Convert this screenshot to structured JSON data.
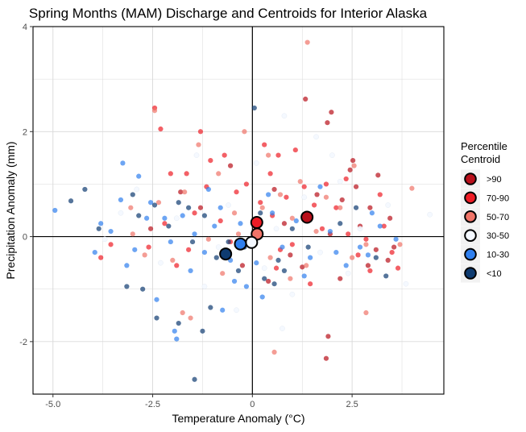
{
  "chart_data": {
    "type": "scatter",
    "title": "Spring Months (MAM) Discharge and Centroids for Interior Alaska",
    "xlabel": "Temperature Anomaly (°C)",
    "ylabel": "Precipitation Anomaly (mm)",
    "xlim": [
      -5.5,
      4.8
    ],
    "ylim": [
      -3.0,
      4.0
    ],
    "x_ticks": [
      -5.0,
      -2.5,
      0,
      2.5
    ],
    "x_tick_labels": [
      "-5.0",
      "-2.5",
      "0",
      "2.5"
    ],
    "y_ticks": [
      -2,
      0,
      2,
      4
    ],
    "y_tick_labels": [
      "-2",
      "0",
      "2",
      "4"
    ],
    "grid": true,
    "legend": {
      "title_line1": "Percentile",
      "title_line2": "Centroid",
      "placement": "right"
    },
    "categories": [
      {
        "name": ">90",
        "color": "#b80f1a"
      },
      {
        "name": "70-90",
        "color": "#ee1c25"
      },
      {
        "name": "50-70",
        "color": "#f07468"
      },
      {
        "name": "30-50",
        "color": "#f4f8ff"
      },
      {
        "name": "10-30",
        "color": "#2f7fee"
      },
      {
        "name": "<10",
        "color": "#0e3b70"
      }
    ],
    "centroids": [
      {
        "category": ">90",
        "x": 1.37,
        "y": 0.37
      },
      {
        "category": "70-90",
        "x": 0.11,
        "y": 0.27
      },
      {
        "category": "50-70",
        "x": 0.12,
        "y": 0.05
      },
      {
        "category": "30-50",
        "x": -0.02,
        "y": -0.11
      },
      {
        "category": "10-30",
        "x": -0.3,
        "y": -0.14
      },
      {
        "category": "<10",
        "x": -0.67,
        "y": -0.33
      }
    ],
    "points": [
      {
        "category": ">90",
        "x": 1.33,
        "y": 2.62
      },
      {
        "category": ">90",
        "x": 1.98,
        "y": 2.37
      },
      {
        "category": ">90",
        "x": 1.88,
        "y": 2.17
      },
      {
        "category": ">90",
        "x": 2.52,
        "y": 1.45
      },
      {
        "category": ">90",
        "x": 2.45,
        "y": 1.27
      },
      {
        "category": ">90",
        "x": 3.15,
        "y": 1.17
      },
      {
        "category": ">90",
        "x": 1.62,
        "y": 0.8
      },
      {
        "category": ">90",
        "x": 2.25,
        "y": 0.7
      },
      {
        "category": ">90",
        "x": 2.95,
        "y": 0.55
      },
      {
        "category": ">90",
        "x": 3.45,
        "y": 0.35
      },
      {
        "category": ">90",
        "x": 2.7,
        "y": 0.2
      },
      {
        "category": ">90",
        "x": 1.95,
        "y": 0.05
      },
      {
        "category": ">90",
        "x": 3.55,
        "y": -0.2
      },
      {
        "category": ">90",
        "x": 3.4,
        "y": -0.45
      },
      {
        "category": ">90",
        "x": 2.9,
        "y": -0.55
      },
      {
        "category": ">90",
        "x": 1.25,
        "y": -0.58
      },
      {
        "category": ">90",
        "x": 0.95,
        "y": -0.35
      },
      {
        "category": ">90",
        "x": 0.8,
        "y": 0.25
      },
      {
        "category": ">90",
        "x": 0.55,
        "y": 0.9
      },
      {
        "category": ">90",
        "x": -0.55,
        "y": 1.35
      },
      {
        "category": ">90",
        "x": -1.8,
        "y": 0.85
      },
      {
        "category": ">90",
        "x": -2.55,
        "y": 0.15
      },
      {
        "category": ">90",
        "x": -0.25,
        "y": -0.55
      },
      {
        "category": ">90",
        "x": 2.2,
        "y": -0.8
      },
      {
        "category": ">90",
        "x": 1.9,
        "y": -1.9
      },
      {
        "category": ">90",
        "x": 1.85,
        "y": -2.32
      },
      {
        "category": ">90",
        "x": 3.1,
        "y": -0.25
      },
      {
        "category": ">90",
        "x": 0.4,
        "y": -0.85
      },
      {
        "category": ">90",
        "x": 2.6,
        "y": 0.95
      },
      {
        "category": ">90",
        "x": -1.3,
        "y": 0.55
      },
      {
        "category": "70-90",
        "x": -2.45,
        "y": 2.45
      },
      {
        "category": "70-90",
        "x": -2.3,
        "y": 2.05
      },
      {
        "category": "70-90",
        "x": -1.3,
        "y": 2.0
      },
      {
        "category": "70-90",
        "x": 0.3,
        "y": 1.75
      },
      {
        "category": "70-90",
        "x": 1.08,
        "y": 1.65
      },
      {
        "category": "70-90",
        "x": 0.65,
        "y": 1.55
      },
      {
        "category": "70-90",
        "x": -0.7,
        "y": 1.55
      },
      {
        "category": "70-90",
        "x": -1.05,
        "y": 1.45
      },
      {
        "category": "70-90",
        "x": -1.65,
        "y": 1.2
      },
      {
        "category": "70-90",
        "x": -2.05,
        "y": 1.2
      },
      {
        "category": "70-90",
        "x": 0.45,
        "y": 1.2
      },
      {
        "category": "70-90",
        "x": 1.85,
        "y": 1.0
      },
      {
        "category": "70-90",
        "x": 2.35,
        "y": 1.1
      },
      {
        "category": "70-90",
        "x": -1.15,
        "y": 0.95
      },
      {
        "category": "70-90",
        "x": -0.4,
        "y": 0.85
      },
      {
        "category": "70-90",
        "x": 0.85,
        "y": 0.75
      },
      {
        "category": "70-90",
        "x": 1.55,
        "y": 0.6
      },
      {
        "category": "70-90",
        "x": 2.1,
        "y": 0.55
      },
      {
        "category": "70-90",
        "x": 3.2,
        "y": 0.8
      },
      {
        "category": "70-90",
        "x": -1.45,
        "y": 0.45
      },
      {
        "category": "70-90",
        "x": -0.8,
        "y": 0.3
      },
      {
        "category": "70-90",
        "x": -2.2,
        "y": 0.25
      },
      {
        "category": "70-90",
        "x": 0.5,
        "y": 0.4
      },
      {
        "category": "70-90",
        "x": 1.75,
        "y": 0.15
      },
      {
        "category": "70-90",
        "x": 2.4,
        "y": 0.05
      },
      {
        "category": "70-90",
        "x": 3.5,
        "y": -0.3
      },
      {
        "category": "70-90",
        "x": 2.65,
        "y": -0.35
      },
      {
        "category": "70-90",
        "x": 0.7,
        "y": -0.25
      },
      {
        "category": "70-90",
        "x": -0.55,
        "y": -0.1
      },
      {
        "category": "70-90",
        "x": -3.8,
        "y": -0.4
      },
      {
        "category": "70-90",
        "x": -1.9,
        "y": -0.55
      },
      {
        "category": "70-90",
        "x": 1.45,
        "y": -0.9
      },
      {
        "category": "70-90",
        "x": 3.65,
        "y": -0.6
      },
      {
        "category": "70-90",
        "x": 3.3,
        "y": 0.2
      },
      {
        "category": "70-90",
        "x": -0.15,
        "y": 1.0
      },
      {
        "category": "70-90",
        "x": 0.2,
        "y": 0.65
      },
      {
        "category": "70-90",
        "x": -2.6,
        "y": -0.2
      },
      {
        "category": "70-90",
        "x": 1.0,
        "y": -0.15
      },
      {
        "category": "70-90",
        "x": 2.85,
        "y": -0.05
      },
      {
        "category": "70-90",
        "x": 0.05,
        "y": 0.2
      },
      {
        "category": "70-90",
        "x": -3.55,
        "y": -0.15
      },
      {
        "category": "70-90",
        "x": 1.3,
        "y": 0.95
      },
      {
        "category": "70-90",
        "x": -1.6,
        "y": -0.25
      },
      {
        "category": "70-90",
        "x": 2.95,
        "y": -0.65
      },
      {
        "category": "70-90",
        "x": 0.6,
        "y": -0.6
      },
      {
        "category": "50-70",
        "x": 1.38,
        "y": 3.7
      },
      {
        "category": "50-70",
        "x": -2.45,
        "y": 2.4
      },
      {
        "category": "50-70",
        "x": -0.2,
        "y": 2.0
      },
      {
        "category": "50-70",
        "x": -1.35,
        "y": 1.75
      },
      {
        "category": "50-70",
        "x": 0.4,
        "y": 1.55
      },
      {
        "category": "50-70",
        "x": 2.55,
        "y": 1.35
      },
      {
        "category": "50-70",
        "x": -0.85,
        "y": 1.2
      },
      {
        "category": "50-70",
        "x": 1.2,
        "y": 1.05
      },
      {
        "category": "50-70",
        "x": -1.7,
        "y": 0.85
      },
      {
        "category": "50-70",
        "x": 0.7,
        "y": 0.8
      },
      {
        "category": "50-70",
        "x": 4.0,
        "y": 0.92
      },
      {
        "category": "50-70",
        "x": -2.35,
        "y": 0.65
      },
      {
        "category": "50-70",
        "x": 2.2,
        "y": 0.55
      },
      {
        "category": "50-70",
        "x": -0.45,
        "y": 0.45
      },
      {
        "category": "50-70",
        "x": 1.0,
        "y": 0.35
      },
      {
        "category": "50-70",
        "x": -3.0,
        "y": 0.05
      },
      {
        "category": "50-70",
        "x": 1.6,
        "y": 0.1
      },
      {
        "category": "50-70",
        "x": -1.1,
        "y": -0.05
      },
      {
        "category": "50-70",
        "x": 2.85,
        "y": -0.15
      },
      {
        "category": "50-70",
        "x": 0.45,
        "y": -0.4
      },
      {
        "category": "50-70",
        "x": -2.0,
        "y": -0.45
      },
      {
        "category": "50-70",
        "x": 1.35,
        "y": -0.55
      },
      {
        "category": "50-70",
        "x": -0.75,
        "y": -0.7
      },
      {
        "category": "50-70",
        "x": 0.95,
        "y": -0.8
      },
      {
        "category": "50-70",
        "x": -1.75,
        "y": -1.45
      },
      {
        "category": "50-70",
        "x": -1.55,
        "y": -1.55
      },
      {
        "category": "50-70",
        "x": 0.55,
        "y": -2.2
      },
      {
        "category": "50-70",
        "x": 2.85,
        "y": -1.45
      },
      {
        "category": "50-70",
        "x": 3.7,
        "y": -0.15
      },
      {
        "category": "50-70",
        "x": -3.05,
        "y": 0.55
      },
      {
        "category": "50-70",
        "x": 0.25,
        "y": 0.55
      },
      {
        "category": "50-70",
        "x": 1.85,
        "y": 0.75
      },
      {
        "category": "50-70",
        "x": -0.35,
        "y": 0.05
      },
      {
        "category": "50-70",
        "x": 2.5,
        "y": -0.4
      },
      {
        "category": "50-70",
        "x": -2.7,
        "y": -0.35
      },
      {
        "category": "30-50",
        "x": 0.8,
        "y": 2.3
      },
      {
        "category": "30-50",
        "x": 1.6,
        "y": 1.9
      },
      {
        "category": "30-50",
        "x": -1.4,
        "y": 1.55
      },
      {
        "category": "30-50",
        "x": 0.1,
        "y": 1.4
      },
      {
        "category": "30-50",
        "x": 2.2,
        "y": 1.05
      },
      {
        "category": "30-50",
        "x": -2.9,
        "y": 0.9
      },
      {
        "category": "30-50",
        "x": 1.3,
        "y": 0.75
      },
      {
        "category": "30-50",
        "x": -0.6,
        "y": 0.6
      },
      {
        "category": "30-50",
        "x": 3.4,
        "y": 0.6
      },
      {
        "category": "30-50",
        "x": 4.45,
        "y": 0.42
      },
      {
        "category": "30-50",
        "x": -1.9,
        "y": 0.35
      },
      {
        "category": "30-50",
        "x": 0.6,
        "y": 0.15
      },
      {
        "category": "30-50",
        "x": 2.7,
        "y": 0.15
      },
      {
        "category": "30-50",
        "x": -3.7,
        "y": -0.05
      },
      {
        "category": "30-50",
        "x": -0.85,
        "y": -0.2
      },
      {
        "category": "30-50",
        "x": 1.7,
        "y": -0.3
      },
      {
        "category": "30-50",
        "x": -2.3,
        "y": -0.5
      },
      {
        "category": "30-50",
        "x": 0.3,
        "y": -0.6
      },
      {
        "category": "30-50",
        "x": 2.4,
        "y": -0.7
      },
      {
        "category": "30-50",
        "x": -1.2,
        "y": -0.95
      },
      {
        "category": "30-50",
        "x": 1.0,
        "y": -1.1
      },
      {
        "category": "30-50",
        "x": -0.4,
        "y": -1.4
      },
      {
        "category": "30-50",
        "x": 0.75,
        "y": -1.75
      },
      {
        "category": "30-50",
        "x": 3.85,
        "y": -0.9
      },
      {
        "category": "30-50",
        "x": -3.3,
        "y": 0.45
      },
      {
        "category": "30-50",
        "x": 2.0,
        "y": 1.55
      },
      {
        "category": "10-30",
        "x": -4.95,
        "y": 0.5
      },
      {
        "category": "10-30",
        "x": -3.95,
        "y": -0.3
      },
      {
        "category": "10-30",
        "x": -3.55,
        "y": 0.1
      },
      {
        "category": "10-30",
        "x": -3.3,
        "y": 0.7
      },
      {
        "category": "10-30",
        "x": -3.25,
        "y": 1.4
      },
      {
        "category": "10-30",
        "x": -2.85,
        "y": 1.15
      },
      {
        "category": "10-30",
        "x": -2.55,
        "y": 0.65
      },
      {
        "category": "10-30",
        "x": -2.2,
        "y": 0.35
      },
      {
        "category": "10-30",
        "x": -2.05,
        "y": -0.1
      },
      {
        "category": "10-30",
        "x": -1.75,
        "y": 0.4
      },
      {
        "category": "10-30",
        "x": -1.45,
        "y": 0.05
      },
      {
        "category": "10-30",
        "x": -1.2,
        "y": -0.3
      },
      {
        "category": "10-30",
        "x": -0.95,
        "y": 0.2
      },
      {
        "category": "10-30",
        "x": -0.55,
        "y": -0.45
      },
      {
        "category": "10-30",
        "x": -0.3,
        "y": 0.25
      },
      {
        "category": "10-30",
        "x": 0.1,
        "y": -0.5
      },
      {
        "category": "10-30",
        "x": 0.4,
        "y": 0.8
      },
      {
        "category": "10-30",
        "x": 0.75,
        "y": -0.2
      },
      {
        "category": "10-30",
        "x": 1.1,
        "y": 0.3
      },
      {
        "category": "10-30",
        "x": 1.45,
        "y": -0.4
      },
      {
        "category": "10-30",
        "x": 1.95,
        "y": 0.1
      },
      {
        "category": "10-30",
        "x": 2.35,
        "y": -0.55
      },
      {
        "category": "10-30",
        "x": 2.7,
        "y": -0.2
      },
      {
        "category": "10-30",
        "x": 3.2,
        "y": 0.2
      },
      {
        "category": "10-30",
        "x": 3.6,
        "y": -0.05
      },
      {
        "category": "10-30",
        "x": -2.4,
        "y": -1.2
      },
      {
        "category": "10-30",
        "x": -1.95,
        "y": -1.8
      },
      {
        "category": "10-30",
        "x": -1.9,
        "y": -1.95
      },
      {
        "category": "10-30",
        "x": -0.75,
        "y": -1.4
      },
      {
        "category": "10-30",
        "x": -0.15,
        "y": -0.95
      },
      {
        "category": "10-30",
        "x": -2.95,
        "y": -0.25
      },
      {
        "category": "10-30",
        "x": -3.8,
        "y": 0.25
      },
      {
        "category": "10-30",
        "x": 0.25,
        "y": -1.15
      },
      {
        "category": "10-30",
        "x": 1.7,
        "y": 0.95
      },
      {
        "category": "10-30",
        "x": 3.0,
        "y": 0.45
      },
      {
        "category": "10-30",
        "x": -1.1,
        "y": 0.9
      },
      {
        "category": "10-30",
        "x": 0.5,
        "y": 0.45
      },
      {
        "category": "10-30",
        "x": -2.65,
        "y": 0.35
      },
      {
        "category": "10-30",
        "x": -0.45,
        "y": -0.85
      },
      {
        "category": "10-30",
        "x": 2.1,
        "y": -0.3
      },
      {
        "category": "10-30",
        "x": -3.15,
        "y": -0.55
      },
      {
        "category": "10-30",
        "x": 1.3,
        "y": -0.75
      },
      {
        "category": "10-30",
        "x": -0.8,
        "y": 0.55
      },
      {
        "category": "10-30",
        "x": -1.55,
        "y": -0.65
      },
      {
        "category": "10-30",
        "x": 2.9,
        "y": -0.35
      },
      {
        "category": "<10",
        "x": -4.55,
        "y": 0.68
      },
      {
        "category": "<10",
        "x": -4.2,
        "y": 0.9
      },
      {
        "category": "<10",
        "x": -3.85,
        "y": 0.15
      },
      {
        "category": "<10",
        "x": -3.0,
        "y": 0.8
      },
      {
        "category": "<10",
        "x": -2.85,
        "y": 0.4
      },
      {
        "category": "<10",
        "x": -2.45,
        "y": 0.6
      },
      {
        "category": "<10",
        "x": -2.1,
        "y": 0.2
      },
      {
        "category": "<10",
        "x": -1.85,
        "y": 0.65
      },
      {
        "category": "<10",
        "x": -1.5,
        "y": -0.1
      },
      {
        "category": "<10",
        "x": -1.2,
        "y": 0.4
      },
      {
        "category": "<10",
        "x": -0.9,
        "y": -0.4
      },
      {
        "category": "<10",
        "x": -0.6,
        "y": -0.1
      },
      {
        "category": "<10",
        "x": -0.35,
        "y": -0.65
      },
      {
        "category": "<10",
        "x": 0.05,
        "y": 2.45
      },
      {
        "category": "<10",
        "x": 0.3,
        "y": -0.8
      },
      {
        "category": "<10",
        "x": 0.65,
        "y": -0.45
      },
      {
        "category": "<10",
        "x": 1.0,
        "y": 0.15
      },
      {
        "category": "<10",
        "x": 2.6,
        "y": 0.55
      },
      {
        "category": "<10",
        "x": 3.1,
        "y": -0.4
      },
      {
        "category": "<10",
        "x": 3.35,
        "y": -0.75
      },
      {
        "category": "<10",
        "x": -2.75,
        "y": -1.0
      },
      {
        "category": "<10",
        "x": -2.4,
        "y": -1.55
      },
      {
        "category": "<10",
        "x": -1.85,
        "y": -1.65
      },
      {
        "category": "<10",
        "x": -1.05,
        "y": -1.35
      },
      {
        "category": "<10",
        "x": -1.25,
        "y": -1.8
      },
      {
        "category": "<10",
        "x": -1.45,
        "y": -2.72
      },
      {
        "category": "<10",
        "x": -3.15,
        "y": -0.95
      },
      {
        "category": "<10",
        "x": 0.8,
        "y": -0.65
      },
      {
        "category": "<10",
        "x": 0.55,
        "y": -0.9
      },
      {
        "category": "<10",
        "x": -0.2,
        "y": -0.2
      },
      {
        "category": "<10",
        "x": 1.4,
        "y": -0.2
      },
      {
        "category": "<10",
        "x": -1.6,
        "y": 0.55
      },
      {
        "category": "<10",
        "x": 2.2,
        "y": 0.25
      },
      {
        "category": "<10",
        "x": 0.2,
        "y": 0.45
      }
    ]
  }
}
